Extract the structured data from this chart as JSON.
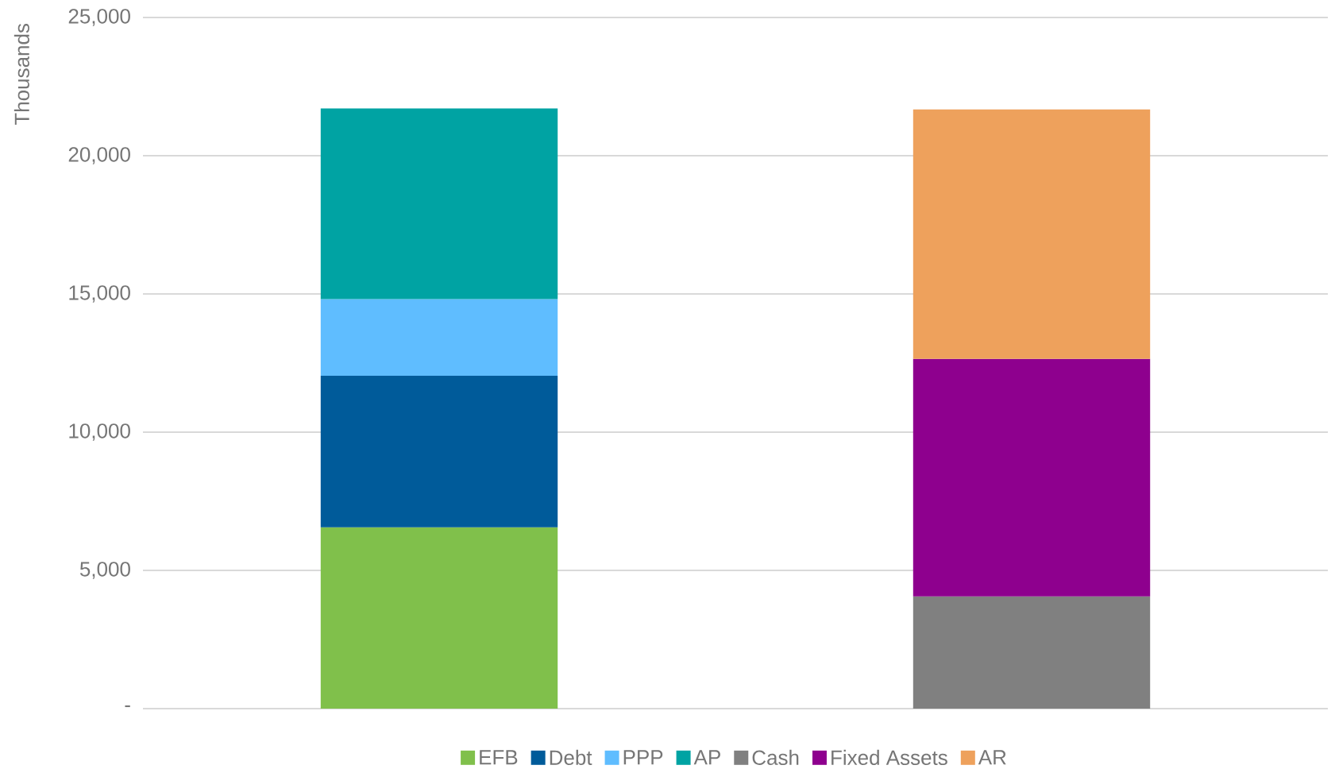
{
  "chart_data": {
    "type": "bar",
    "stacked": true,
    "ylabel": "Thousands",
    "categories": [
      null,
      null
    ],
    "series": [
      {
        "name": "EFB",
        "color": "#80c04b",
        "values": [
          6560,
          null
        ]
      },
      {
        "name": "Debt",
        "color": "#005b9a",
        "values": [
          5480,
          null
        ]
      },
      {
        "name": "PPP",
        "color": "#5fbdff",
        "values": [
          2770,
          null
        ]
      },
      {
        "name": "AP",
        "color": "#00a3a3",
        "values": [
          6900,
          null
        ]
      },
      {
        "name": "Cash",
        "color": "#808080",
        "values": [
          null,
          4060
        ]
      },
      {
        "name": "Fixed Assets",
        "color": "#8e008e",
        "values": [
          null,
          8590
        ]
      },
      {
        "name": "AR",
        "color": "#eea15c",
        "values": [
          null,
          9020
        ]
      }
    ],
    "ylim": [
      0,
      25000
    ],
    "yticks": [
      {
        "value": 0,
        "label": "-"
      },
      {
        "value": 5000,
        "label": "5,000"
      },
      {
        "value": 10000,
        "label": "10,000"
      },
      {
        "value": 15000,
        "label": "15,000"
      },
      {
        "value": 20000,
        "label": "20,000"
      },
      {
        "value": 25000,
        "label": "25,000"
      }
    ],
    "grid": "y",
    "legend": "bottom"
  }
}
